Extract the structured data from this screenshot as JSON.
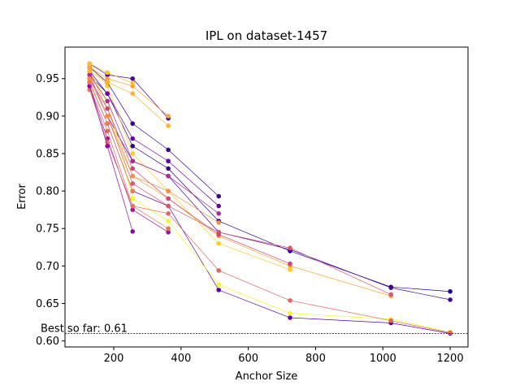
{
  "chart_data": {
    "type": "line",
    "title": "IPL on dataset-1457",
    "x_label": "Anchor Size",
    "y_label": "Error",
    "xlim": [
      55,
      1253
    ],
    "ylim": [
      0.592,
      0.992
    ],
    "xticks": [
      200,
      400,
      600,
      800,
      1000,
      1200
    ],
    "yticks": [
      {
        "value": 0.6,
        "label": "0.60"
      },
      {
        "value": 0.65,
        "label": "0.65"
      },
      {
        "value": 0.7,
        "label": "0.70"
      },
      {
        "value": 0.75,
        "label": "0.75"
      },
      {
        "value": 0.8,
        "label": "0.80"
      },
      {
        "value": 0.85,
        "label": "0.85"
      },
      {
        "value": 0.9,
        "label": "0.90"
      },
      {
        "value": 0.95,
        "label": "0.95"
      }
    ],
    "best_so_far": 0.61,
    "annotation": "Best so far: 0.61",
    "series": [
      {
        "color": "#2a0593",
        "x": [
          128,
          181,
          256,
          362,
          512,
          724,
          1024,
          1200
        ],
        "values": [
          0.955,
          0.93,
          0.86,
          0.83,
          0.76,
          0.72,
          0.672,
          0.666
        ]
      },
      {
        "color": "#41049d",
        "x": [
          128,
          181,
          256,
          362,
          512,
          724,
          1024,
          1200
        ],
        "values": [
          0.95,
          0.9,
          0.84,
          0.82,
          0.745,
          0.722,
          0.671,
          0.655
        ]
      },
      {
        "color": "#5c01a6",
        "x": [
          128,
          181,
          256,
          362,
          512,
          724,
          1024,
          1200
        ],
        "values": [
          0.945,
          0.89,
          0.8,
          0.78,
          0.668,
          0.631,
          0.624,
          0.61
        ]
      },
      {
        "color": "#f0f921",
        "x": [
          128,
          181,
          256,
          362,
          512,
          724,
          1024,
          1200
        ],
        "values": [
          0.96,
          0.92,
          0.79,
          0.76,
          0.675,
          0.637,
          0.629,
          0.612
        ]
      },
      {
        "color": "#e16462",
        "x": [
          128,
          181,
          256,
          362,
          512,
          724,
          1024,
          1200
        ],
        "values": [
          0.94,
          0.88,
          0.78,
          0.77,
          0.694,
          0.654,
          0.627,
          0.611
        ]
      },
      {
        "color": "#fca636",
        "x": [
          128,
          181,
          256,
          362,
          512,
          724,
          1024
        ],
        "values": [
          0.96,
          0.91,
          0.82,
          0.79,
          0.74,
          0.7,
          0.66
        ]
      },
      {
        "color": "#d8576b",
        "x": [
          128,
          181,
          256,
          362,
          512,
          724,
          1024
        ],
        "values": [
          0.955,
          0.9,
          0.81,
          0.78,
          0.745,
          0.724,
          0.662
        ]
      },
      {
        "color": "#fdca26",
        "x": [
          128,
          181,
          256,
          362,
          512,
          724
        ],
        "values": [
          0.97,
          0.94,
          0.85,
          0.8,
          0.73,
          0.695
        ]
      },
      {
        "color": "#cc4778",
        "x": [
          128,
          181,
          256,
          362,
          512,
          724
        ],
        "values": [
          0.95,
          0.91,
          0.83,
          0.79,
          0.742,
          0.703
        ]
      },
      {
        "color": "#350498",
        "x": [
          128,
          181,
          256,
          362,
          512
        ],
        "values": [
          0.965,
          0.945,
          0.89,
          0.855,
          0.793
        ]
      },
      {
        "color": "#6a00a8",
        "x": [
          128,
          181,
          256,
          362,
          512
        ],
        "values": [
          0.96,
          0.93,
          0.87,
          0.84,
          0.78
        ]
      },
      {
        "color": "#b12a90",
        "x": [
          128,
          181,
          256,
          362,
          512
        ],
        "values": [
          0.955,
          0.92,
          0.84,
          0.82,
          0.77
        ]
      },
      {
        "color": "#f58c46",
        "x": [
          128,
          181,
          256,
          362,
          512
        ],
        "values": [
          0.95,
          0.9,
          0.82,
          0.8,
          0.758
        ]
      },
      {
        "color": "#4c02a1",
        "x": [
          128,
          181,
          256,
          362
        ],
        "values": [
          0.97,
          0.955,
          0.95,
          0.897
        ]
      },
      {
        "color": "#fba238",
        "x": [
          128,
          181,
          256,
          362
        ],
        "values": [
          0.965,
          0.95,
          0.94,
          0.9
        ]
      },
      {
        "color": "#fdb42f",
        "x": [
          128,
          181,
          256,
          362
        ],
        "values": [
          0.96,
          0.945,
          0.93,
          0.887
        ]
      },
      {
        "color": "#9c179e",
        "x": [
          128,
          181,
          256,
          362
        ],
        "values": [
          0.94,
          0.87,
          0.775,
          0.745
        ]
      },
      {
        "color": "#e97158",
        "x": [
          128,
          181,
          256,
          362
        ],
        "values": [
          0.935,
          0.865,
          0.78,
          0.75
        ]
      },
      {
        "color": "#8b0aa5",
        "x": [
          128,
          181,
          256
        ],
        "values": [
          0.94,
          0.86,
          0.746
        ]
      },
      {
        "color": "#fec029",
        "x": [
          128,
          181,
          256
        ],
        "values": [
          0.97,
          0.958,
          0.944
        ]
      },
      {
        "color": "#ed7953",
        "x": [
          128,
          181,
          256
        ],
        "values": [
          0.945,
          0.89,
          0.8
        ]
      }
    ]
  }
}
